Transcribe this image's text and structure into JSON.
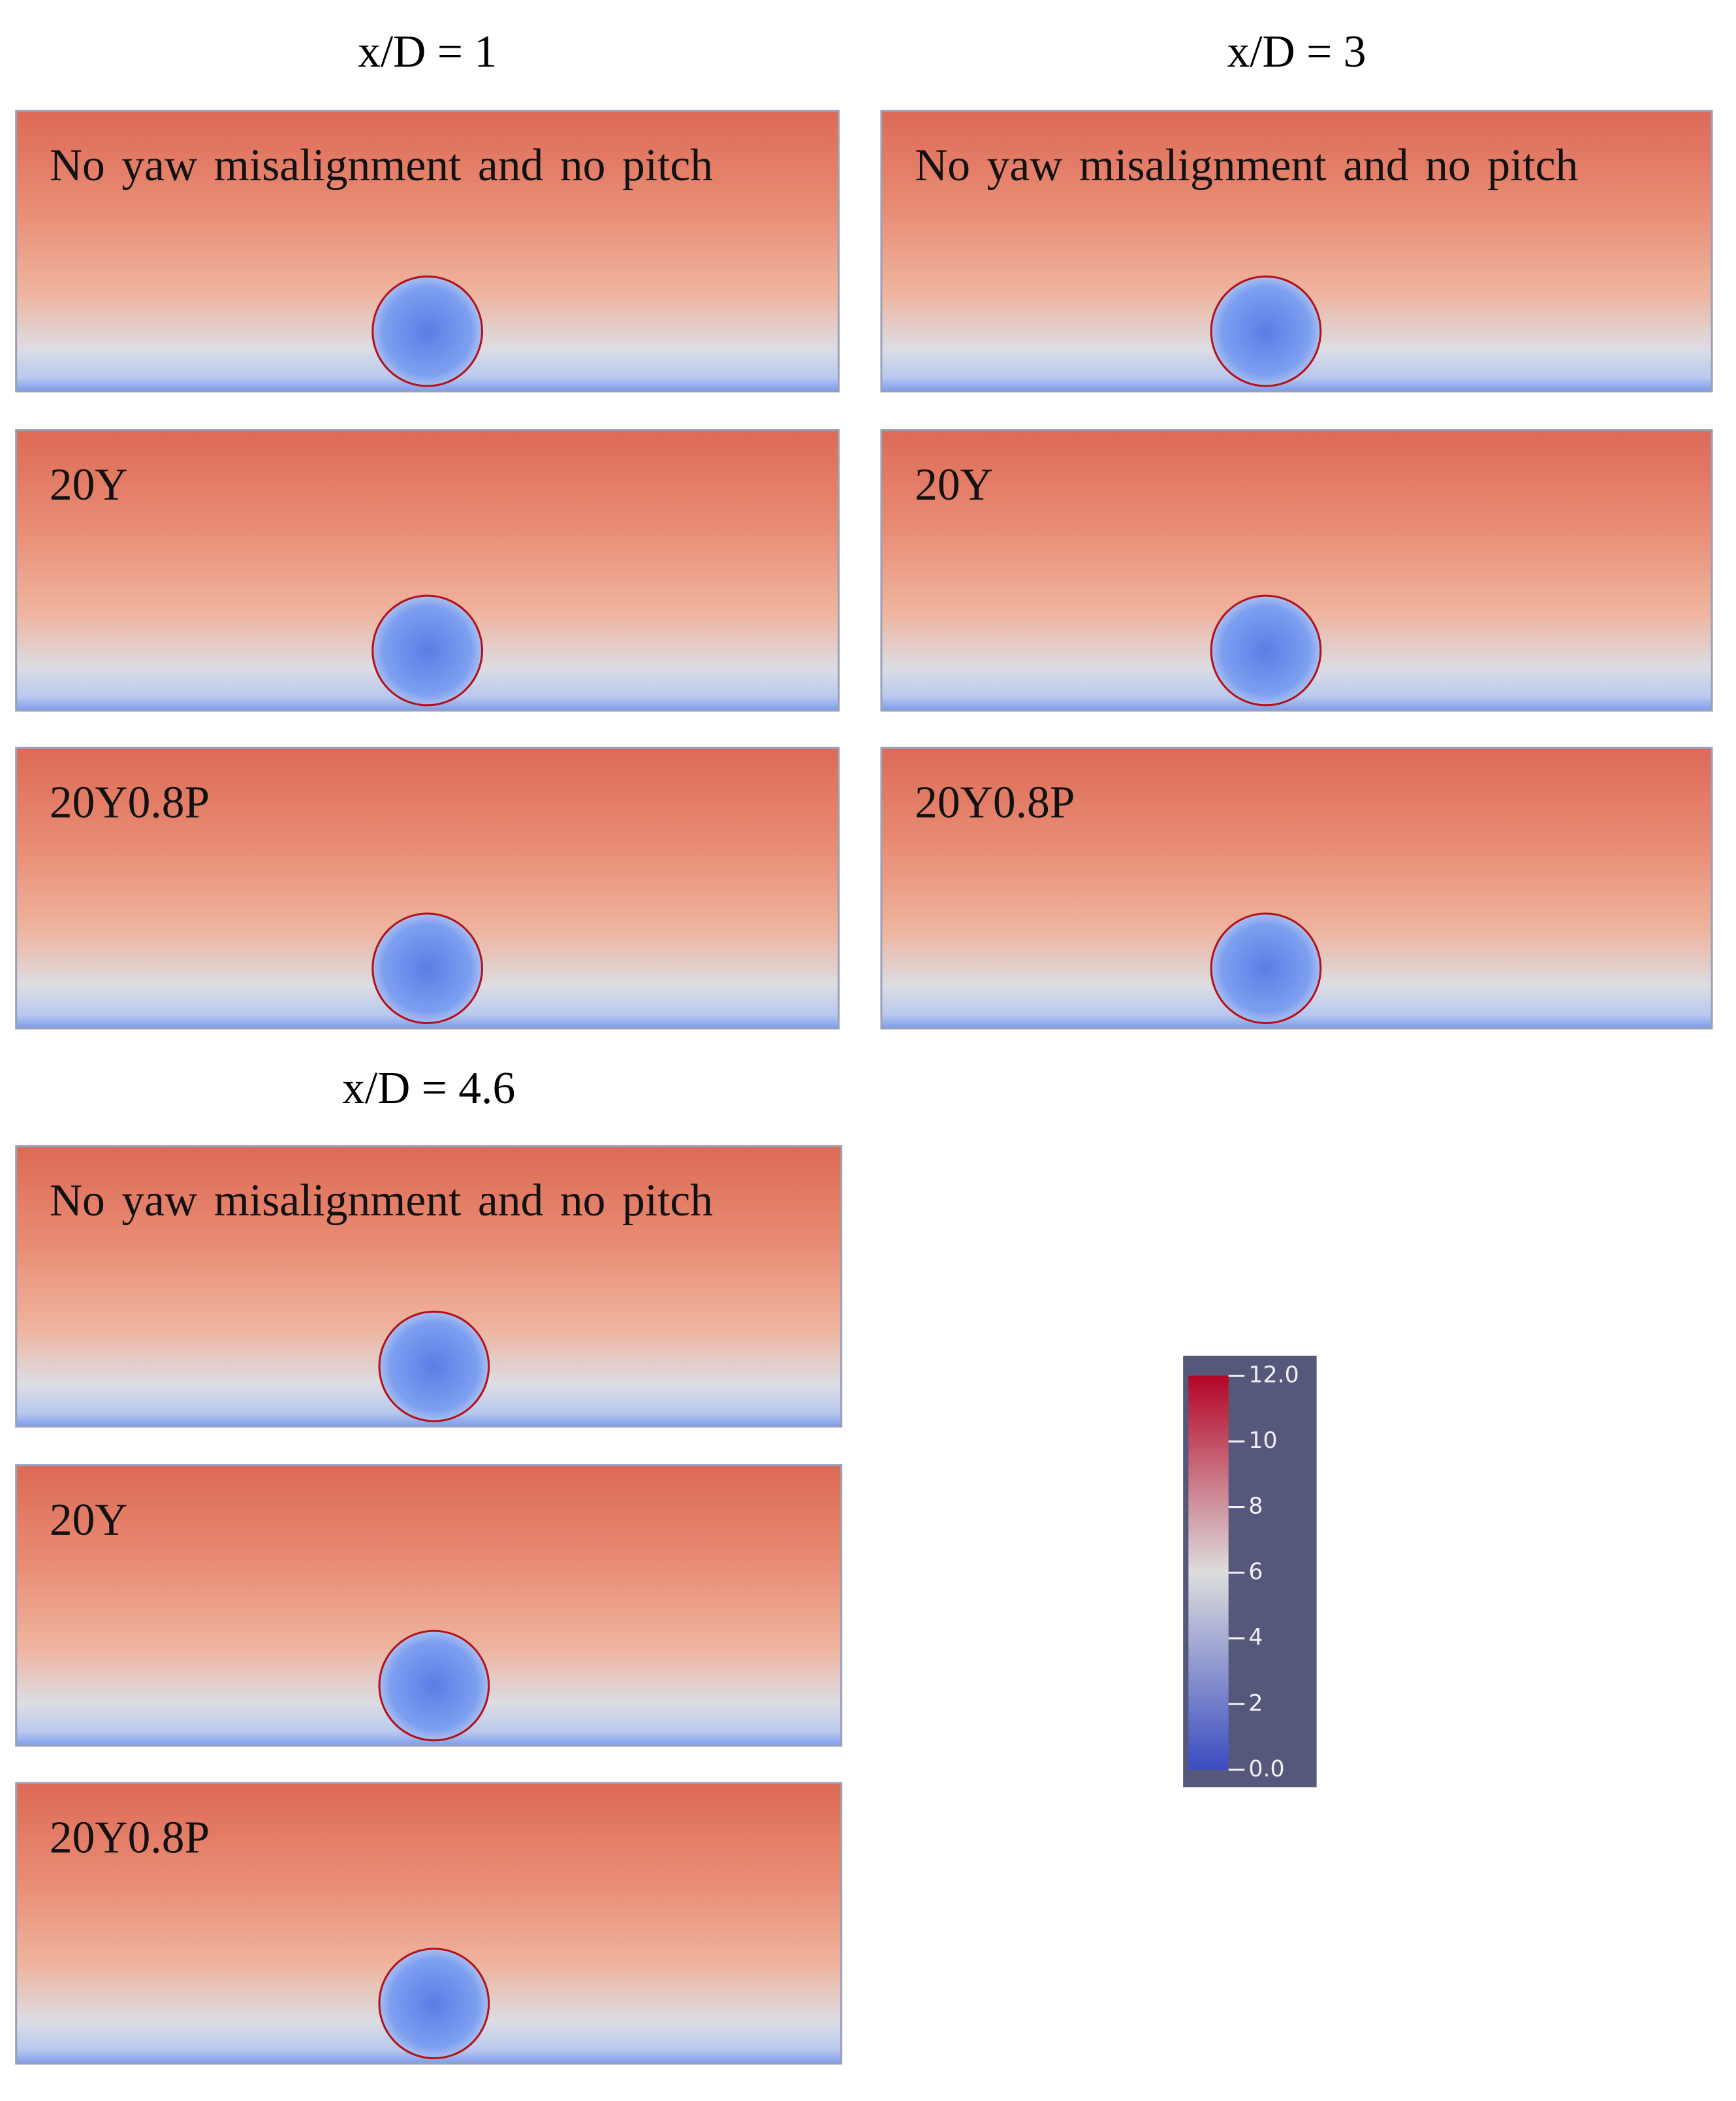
{
  "groups": [
    {
      "title": "x/D = 1",
      "panels": [
        {
          "label": "No yaw misalignment and no pitch"
        },
        {
          "label": "20Y"
        },
        {
          "label": "20Y0.8P"
        }
      ]
    },
    {
      "title": "x/D = 3",
      "panels": [
        {
          "label": "No yaw misalignment and no pitch"
        },
        {
          "label": "20Y"
        },
        {
          "label": "20Y0.8P"
        }
      ]
    },
    {
      "title": "x/D = 4.6",
      "panels": [
        {
          "label": "No yaw misalignment and no pitch"
        },
        {
          "label": "20Y"
        },
        {
          "label": "20Y0.8P"
        }
      ]
    }
  ],
  "colorbar": {
    "lim": [
      0,
      12
    ],
    "ticks": [
      {
        "value": 0,
        "label": "0.0"
      },
      2,
      4,
      6,
      8,
      10,
      {
        "value": 12,
        "label": "12.0"
      }
    ]
  }
}
